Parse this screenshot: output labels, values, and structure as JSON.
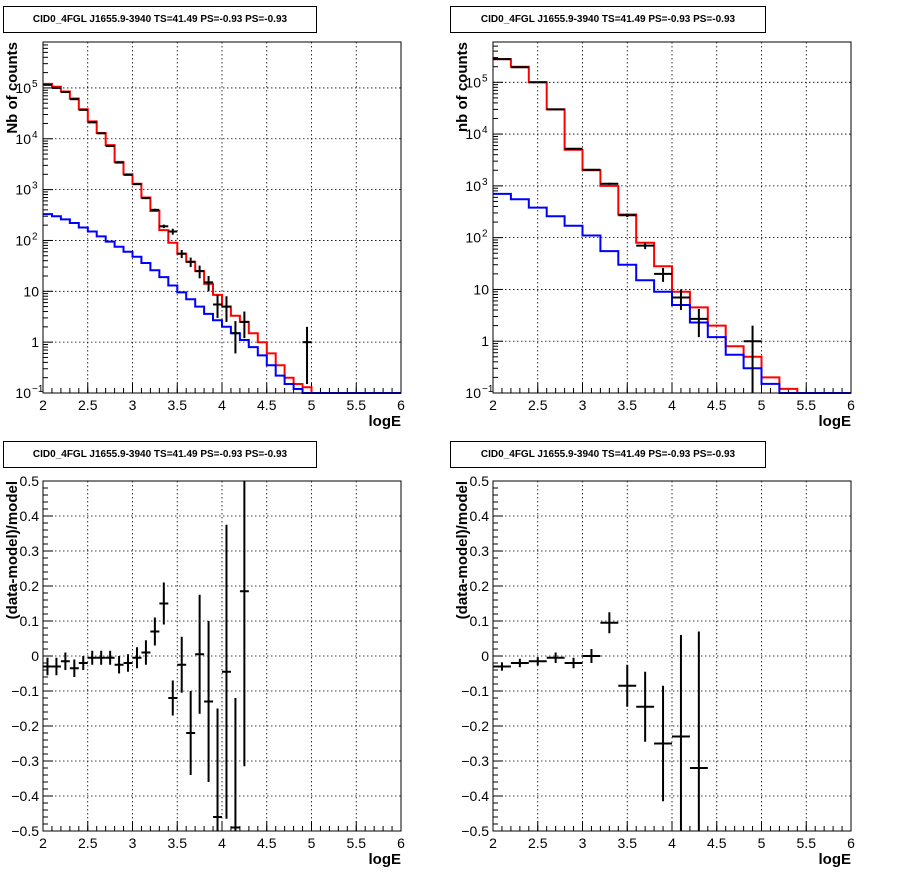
{
  "chart_data": [
    {
      "type": "line",
      "title": "CID0_4FGL J1655.9-3940 TS=41.49 PS=-0.93 PS=-0.93",
      "xlabel": "logE",
      "ylabel": "Nb of counts",
      "xlim": [
        2,
        6
      ],
      "ylim": [
        0.1,
        800000
      ],
      "yscale": "log",
      "grid": true,
      "x_ticks": [
        "2",
        "2.5",
        "3",
        "3.5",
        "4",
        "4.5",
        "5",
        "5.5",
        "6"
      ],
      "y_ticks": [
        {
          "value": 0.1,
          "label": "10",
          "exp": "−1"
        },
        {
          "value": 1,
          "label": "1",
          "exp": ""
        },
        {
          "value": 10,
          "label": "10",
          "exp": ""
        },
        {
          "value": 100,
          "label": "10",
          "exp": "2"
        },
        {
          "value": 1000,
          "label": "10",
          "exp": "3"
        },
        {
          "value": 10000,
          "label": "10",
          "exp": "4"
        },
        {
          "value": 100000,
          "label": "10",
          "exp": "5"
        }
      ],
      "bin_width": 0.1,
      "series": [
        {
          "color": "#ff0000",
          "style": "step",
          "bin_lo": [
            2.0,
            2.1,
            2.2,
            2.3,
            2.4,
            2.5,
            2.6,
            2.7,
            2.8,
            2.9,
            3.0,
            3.1,
            3.2,
            3.3,
            3.4,
            3.5,
            3.6,
            3.7,
            3.8,
            3.9,
            4.0,
            4.1,
            4.2,
            4.3,
            4.4,
            4.5,
            4.6,
            4.7,
            4.8,
            4.9,
            5.0,
            5.1,
            5.2,
            5.3,
            5.4,
            5.5,
            5.6,
            5.7,
            5.8,
            5.9
          ],
          "values": [
            120000,
            105000,
            85000,
            62000,
            38000,
            22000,
            13000,
            7500,
            3500,
            2000,
            1300,
            700,
            380,
            160,
            90,
            55,
            38,
            25,
            14,
            8.5,
            5,
            3.3,
            2.5,
            1.5,
            1,
            0.6,
            0.35,
            0.2,
            0.15,
            0.13,
            0.1,
            0.1,
            0.1,
            0.1,
            0.1,
            0.1,
            0.1,
            0.1,
            0.1,
            0.1
          ]
        },
        {
          "color": "#0000ff",
          "style": "step",
          "bin_lo": [
            2.0,
            2.1,
            2.2,
            2.3,
            2.4,
            2.5,
            2.6,
            2.7,
            2.8,
            2.9,
            3.0,
            3.1,
            3.2,
            3.3,
            3.4,
            3.5,
            3.6,
            3.7,
            3.8,
            3.9,
            4.0,
            4.1,
            4.2,
            4.3,
            4.4,
            4.5,
            4.6,
            4.7,
            4.8,
            4.9,
            5.0,
            5.1,
            5.2,
            5.3,
            5.4,
            5.5,
            5.6,
            5.7,
            5.8,
            5.9
          ],
          "values": [
            330,
            300,
            260,
            220,
            180,
            150,
            120,
            95,
            75,
            60,
            48,
            36,
            26,
            19,
            13,
            9.5,
            7,
            5,
            3.6,
            2.7,
            2.0,
            1.5,
            1.1,
            0.8,
            0.55,
            0.35,
            0.22,
            0.15,
            0.12,
            0.1,
            0.1,
            0.1,
            0.1,
            0.1,
            0.1,
            0.1,
            0.1,
            0.1,
            0.1,
            0.1
          ]
        },
        {
          "color": "#000000",
          "style": "errorbar",
          "x": [
            2.05,
            2.15,
            2.25,
            2.35,
            2.45,
            2.55,
            2.65,
            2.75,
            2.85,
            2.95,
            3.05,
            3.15,
            3.25,
            3.35,
            3.45,
            3.55,
            3.65,
            3.75,
            3.85,
            3.95,
            4.05,
            4.15,
            4.25,
            4.95
          ],
          "y": [
            115000,
            100000,
            83000,
            60000,
            37000,
            21000,
            12800,
            7200,
            3400,
            1950,
            1280,
            680,
            400,
            190,
            150,
            55,
            38,
            25,
            15,
            5.5,
            5,
            1.5,
            2.5,
            1
          ],
          "ylo": [
            112000,
            97000,
            80000,
            58000,
            36000,
            20500,
            12500,
            7000,
            3300,
            1900,
            1240,
            650,
            380,
            175,
            130,
            45,
            30,
            18,
            10,
            3,
            2.5,
            0.6,
            1.2,
            0.15
          ],
          "yhi": [
            118000,
            103000,
            86000,
            62000,
            38000,
            21500,
            13100,
            7400,
            3500,
            2000,
            1320,
            710,
            420,
            205,
            170,
            65,
            46,
            32,
            20,
            8.5,
            8,
            2.6,
            4,
            2
          ]
        }
      ]
    },
    {
      "type": "line",
      "title": "CID0_4FGL J1655.9-3940 TS=41.49 PS=-0.93 PS=-0.93",
      "xlabel": "logE",
      "ylabel": "nb of counts",
      "xlim": [
        2,
        6
      ],
      "ylim": [
        0.1,
        600000
      ],
      "yscale": "log",
      "grid": true,
      "x_ticks": [
        "2",
        "2.5",
        "3",
        "3.5",
        "4",
        "4.5",
        "5",
        "5.5",
        "6"
      ],
      "y_ticks": [
        {
          "value": 0.1,
          "label": "10",
          "exp": "−1"
        },
        {
          "value": 1,
          "label": "1",
          "exp": ""
        },
        {
          "value": 10,
          "label": "10",
          "exp": ""
        },
        {
          "value": 100,
          "label": "10",
          "exp": "2"
        },
        {
          "value": 1000,
          "label": "10",
          "exp": "3"
        },
        {
          "value": 10000,
          "label": "10",
          "exp": "4"
        },
        {
          "value": 100000,
          "label": "10",
          "exp": "5"
        }
      ],
      "bin_width": 0.2,
      "series": [
        {
          "color": "#ff0000",
          "style": "step",
          "bin_lo": [
            2.0,
            2.2,
            2.4,
            2.6,
            2.8,
            3.0,
            3.2,
            3.4,
            3.6,
            3.8,
            4.0,
            4.2,
            4.4,
            4.6,
            4.8,
            5.0,
            5.2,
            5.4,
            5.6,
            5.8
          ],
          "values": [
            280000,
            200000,
            100000,
            30000,
            5000,
            2000,
            1000,
            280,
            80,
            28,
            9,
            4.5,
            2,
            0.8,
            0.5,
            0.2,
            0.12,
            0.1,
            0.1,
            0.1
          ]
        },
        {
          "color": "#0000ff",
          "style": "step",
          "bin_lo": [
            2.0,
            2.2,
            2.4,
            2.6,
            2.8,
            3.0,
            3.2,
            3.4,
            3.6,
            3.8,
            4.0,
            4.2,
            4.4,
            4.6,
            4.8,
            5.0,
            5.2,
            5.4,
            5.6,
            5.8
          ],
          "values": [
            700,
            550,
            380,
            260,
            170,
            110,
            55,
            30,
            15,
            9,
            5,
            2.3,
            1.2,
            0.55,
            0.3,
            0.15,
            0.1,
            0.1,
            0.1,
            0.1
          ]
        },
        {
          "color": "#000000",
          "style": "errorbar",
          "x": [
            2.1,
            2.3,
            2.5,
            2.7,
            2.9,
            3.1,
            3.3,
            3.5,
            3.7,
            3.9,
            4.1,
            4.3,
            4.9
          ],
          "y": [
            280000,
            195000,
            100000,
            30000,
            5200,
            2050,
            1100,
            270,
            70,
            20,
            7,
            2.7,
            1
          ],
          "ylo": [
            276000,
            192000,
            99000,
            29500,
            5100,
            2000,
            1050,
            250,
            60,
            14,
            4,
            1.2,
            0.1
          ],
          "yhi": [
            284000,
            198000,
            101000,
            30500,
            5300,
            2100,
            1150,
            290,
            80,
            26,
            10,
            4.2,
            2
          ]
        }
      ]
    },
    {
      "type": "scatter",
      "title": "CID0_4FGL J1655.9-3940 TS=41.49 PS=-0.93 PS=-0.93",
      "xlabel": "logE",
      "ylabel": "(data-model)/model",
      "xlim": [
        2,
        6
      ],
      "ylim": [
        -0.5,
        0.5
      ],
      "grid": true,
      "x_ticks": [
        "2",
        "2.5",
        "3",
        "3.5",
        "4",
        "4.5",
        "5",
        "5.5",
        "6"
      ],
      "y_ticks": [
        "−0.5",
        "−0.4",
        "−0.3",
        "−0.2",
        "−0.1",
        "0",
        "0.1",
        "0.2",
        "0.3",
        "0.4",
        "0.5"
      ],
      "x_halfwidth": 0.05,
      "series": [
        {
          "color": "#000000",
          "style": "errorbar",
          "x": [
            2.05,
            2.15,
            2.25,
            2.35,
            2.45,
            2.55,
            2.65,
            2.75,
            2.85,
            2.95,
            3.05,
            3.15,
            3.25,
            3.35,
            3.45,
            3.55,
            3.65,
            3.75,
            3.85,
            3.95,
            4.05,
            4.15,
            4.25
          ],
          "y": [
            -0.03,
            -0.03,
            -0.015,
            -0.035,
            -0.02,
            -0.005,
            -0.005,
            -0.005,
            -0.025,
            -0.02,
            -0.005,
            0.01,
            0.07,
            0.15,
            -0.12,
            -0.025,
            -0.22,
            0.005,
            -0.13,
            -0.46,
            -0.045,
            -0.49,
            0.185
          ],
          "yerr": [
            0.025,
            0.025,
            0.025,
            0.025,
            0.02,
            0.02,
            0.02,
            0.02,
            0.025,
            0.025,
            0.03,
            0.035,
            0.04,
            0.06,
            0.05,
            0.08,
            0.12,
            0.17,
            0.23,
            0.31,
            0.42,
            0.37,
            0.5
          ]
        }
      ]
    },
    {
      "type": "scatter",
      "title": "CID0_4FGL J1655.9-3940 TS=41.49 PS=-0.93 PS=-0.93",
      "xlabel": "logE",
      "ylabel": "(data-model)/model",
      "xlim": [
        2,
        6
      ],
      "ylim": [
        -0.5,
        0.5
      ],
      "grid": true,
      "x_ticks": [
        "2",
        "2.5",
        "3",
        "3.5",
        "4",
        "4.5",
        "5",
        "5.5",
        "6"
      ],
      "y_ticks": [
        "−0.5",
        "−0.4",
        "−0.3",
        "−0.2",
        "−0.1",
        "0",
        "0.1",
        "0.2",
        "0.3",
        "0.4",
        "0.5"
      ],
      "x_halfwidth": 0.1,
      "series": [
        {
          "color": "#000000",
          "style": "errorbar",
          "x": [
            2.1,
            2.3,
            2.5,
            2.7,
            2.9,
            3.1,
            3.3,
            3.5,
            3.7,
            3.9,
            4.1,
            4.3
          ],
          "y": [
            -0.03,
            -0.02,
            -0.015,
            -0.005,
            -0.02,
            0.0,
            0.095,
            -0.085,
            -0.145,
            -0.25,
            -0.23,
            -0.32
          ],
          "yerr": [
            0.012,
            0.012,
            0.012,
            0.015,
            0.015,
            0.02,
            0.03,
            0.06,
            0.1,
            0.165,
            0.29,
            0.39
          ]
        }
      ]
    }
  ]
}
